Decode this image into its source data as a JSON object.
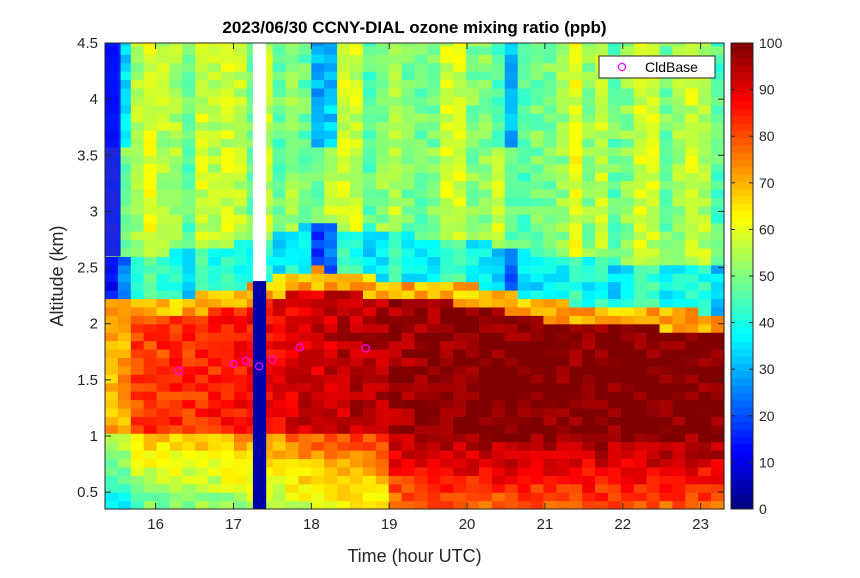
{
  "chart_data": {
    "type": "heatmap",
    "title": "2023/06/30 CCNY-DIAL ozone mixing ratio (ppb)",
    "xlabel": "Time (hour UTC)",
    "ylabel": "Altitude (km)",
    "xlim": [
      15.35,
      23.3
    ],
    "ylim": [
      0.35,
      4.5
    ],
    "x_ticks": [
      16,
      17,
      18,
      19,
      20,
      21,
      22,
      23
    ],
    "y_ticks": [
      0.5,
      1,
      1.5,
      2,
      2.5,
      3,
      3.5,
      4,
      4.5
    ],
    "y_tick_labels": [
      "0.5",
      "1",
      "1.5",
      "2",
      "2.5",
      "3",
      "3.5",
      "4",
      "4.5"
    ],
    "colorbar": {
      "colormap": "jet",
      "range": [
        0,
        100
      ],
      "ticks": [
        0,
        10,
        20,
        30,
        40,
        50,
        60,
        70,
        80,
        90,
        100
      ]
    },
    "grid": false,
    "legend": {
      "position": "top-right",
      "entries": [
        "CldBase"
      ]
    },
    "missing_data_interval": {
      "x_start": 17.25,
      "x_end": 17.42,
      "y_start": 2.38,
      "y_end": 4.5
    },
    "cloud_base": {
      "name": "CldBase",
      "marker_color": "#ff00ff",
      "x": [
        16.3,
        17.0,
        17.16,
        17.33,
        17.5,
        17.85,
        18.7
      ],
      "y": [
        1.58,
        1.64,
        1.67,
        1.62,
        1.68,
        1.79,
        1.78
      ]
    },
    "approximate_structure": {
      "boundary_layer_top_km": [
        [
          15.35,
          2.15
        ],
        [
          16.0,
          2.18
        ],
        [
          17.0,
          2.25
        ],
        [
          18.0,
          2.45
        ],
        [
          19.0,
          2.35
        ],
        [
          20.0,
          2.3
        ],
        [
          21.0,
          2.15
        ],
        [
          22.0,
          2.1
        ],
        [
          23.3,
          2.05
        ]
      ],
      "boundary_layer_ozone_ppb": [
        [
          15.35,
          78
        ],
        [
          16.0,
          82
        ],
        [
          17.0,
          85
        ],
        [
          18.0,
          92
        ],
        [
          19.0,
          96
        ],
        [
          20.0,
          100
        ],
        [
          21.0,
          100
        ],
        [
          22.0,
          100
        ],
        [
          23.3,
          100
        ]
      ],
      "free_troposphere_ozone_ppb": 52
    }
  }
}
